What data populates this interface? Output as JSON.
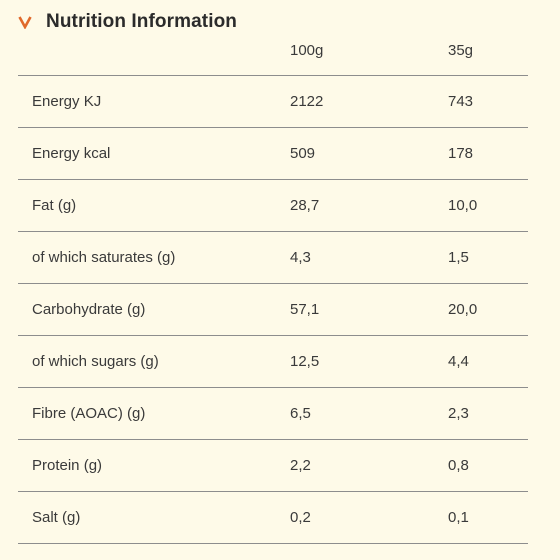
{
  "header": {
    "title": "Nutrition Information",
    "accent": "#e0692b",
    "icon": "chevron-down-icon"
  },
  "columns": [
    "100g",
    "35g"
  ],
  "rows": [
    {
      "label": "Energy KJ",
      "per100": "2122",
      "perServing": "743"
    },
    {
      "label": "Energy kcal",
      "per100": "509",
      "perServing": "178"
    },
    {
      "label": "Fat (g)",
      "per100": "28,7",
      "perServing": "10,0"
    },
    {
      "label": "of which saturates (g)",
      "per100": "4,3",
      "perServing": "1,5"
    },
    {
      "label": "Carbohydrate (g)",
      "per100": "57,1",
      "perServing": "20,0"
    },
    {
      "label": "of which sugars (g)",
      "per100": "12,5",
      "perServing": "4,4"
    },
    {
      "label": "Fibre (AOAC) (g)",
      "per100": "6,5",
      "perServing": "2,3"
    },
    {
      "label": "Protein (g)",
      "per100": "2,2",
      "perServing": "0,8"
    },
    {
      "label": "Salt (g)",
      "per100": "0,2",
      "perServing": "0,1"
    }
  ]
}
